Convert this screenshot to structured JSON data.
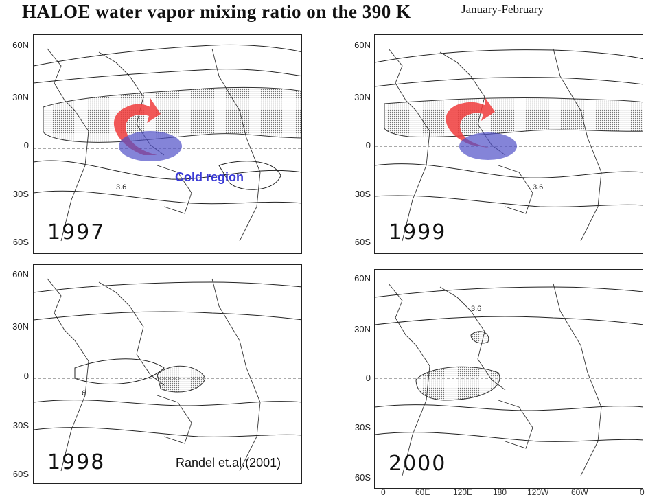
{
  "title": "HALOE water vapor mixing ratio on the 390 K",
  "subtitle": "January-February",
  "latitude_labels": [
    "60N",
    "30N",
    "0",
    "30S",
    "60S"
  ],
  "longitude_labels": [
    "0",
    "60E",
    "120E",
    "180",
    "120W",
    "60W",
    "0"
  ],
  "panels": [
    {
      "year": "1997",
      "contour_label": "3.6"
    },
    {
      "year": "1999",
      "contour_label": "3.6"
    },
    {
      "year": "1998",
      "contour_label": "6"
    },
    {
      "year": "2000",
      "contour_label": "3.6"
    }
  ],
  "annotation": "Cold region",
  "citation": "Randel et.al.(2001)",
  "colors": {
    "arrow": "#f03c3c",
    "cold_region": "#5050c8"
  }
}
